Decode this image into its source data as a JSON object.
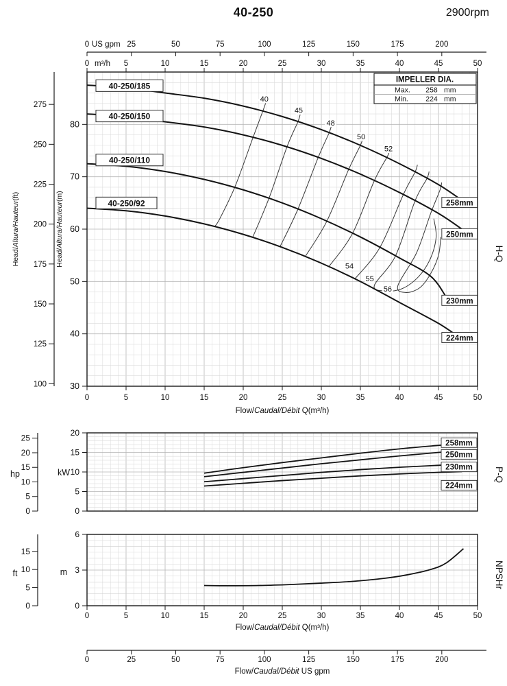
{
  "header": {
    "title": "40-250",
    "rpm": "2900rpm"
  },
  "side_labels": {
    "hq": "H-Q",
    "pq": "P-Q",
    "npshr": "NPSHr"
  },
  "impeller_box": {
    "title": "IMPELLER DIA.",
    "rows": [
      {
        "label": "Max.",
        "value": "258",
        "unit": "mm"
      },
      {
        "label": "Min.",
        "value": "224",
        "unit": "mm"
      }
    ]
  },
  "bottom_axis": {
    "ticks": [
      0,
      25,
      50,
      75,
      100,
      125,
      150,
      175,
      200
    ],
    "title": {
      "pre": "Flow/",
      "italic": "Caudal/Débit",
      "post": "  US gpm"
    }
  },
  "chart_data": [
    {
      "id": "hq",
      "type": "line",
      "xlim": [
        0,
        50
      ],
      "ylim": [
        30,
        90
      ],
      "x_ticks_m3h": [
        0,
        5,
        10,
        15,
        20,
        25,
        30,
        35,
        40,
        45,
        50
      ],
      "x_ticks_gpm": [
        0,
        25,
        50,
        75,
        100,
        125,
        150,
        175,
        200
      ],
      "y_ticks_m": [
        30,
        40,
        50,
        60,
        70,
        80
      ],
      "y_ticks_ft": [
        100,
        125,
        150,
        175,
        200,
        225,
        250,
        275
      ],
      "top_axis_gpm_label": "US gpm",
      "top_axis_m3h_label": "m³/h",
      "xlabel": {
        "pre": "Flow/",
        "italic": "Caudal/Débit",
        "post": " Q(m³/h)"
      },
      "ylabel_ft": {
        "pre": "Head/",
        "italic": "Altura/Hauteur",
        "post": "(ft)"
      },
      "ylabel_m": {
        "pre": "Head/",
        "italic": "Altura/Hauteur",
        "post": "(m)"
      },
      "series": [
        {
          "name": "258mm",
          "model": "40-250/185",
          "model_label_h": 87.4,
          "points": [
            [
              0,
              87.5
            ],
            [
              5,
              87
            ],
            [
              10,
              86
            ],
            [
              15,
              85
            ],
            [
              20,
              83.5
            ],
            [
              25,
              81.5
            ],
            [
              30,
              79
            ],
            [
              35,
              76
            ],
            [
              40,
              72.5
            ],
            [
              45,
              68.5
            ],
            [
              48,
              65.5
            ]
          ],
          "end_label": "258mm",
          "end_label_pos": [
            45.6,
            65.1
          ]
        },
        {
          "name": "250mm",
          "model": "40-250/150",
          "model_label_h": 81.6,
          "points": [
            [
              0,
              82
            ],
            [
              5,
              81.5
            ],
            [
              10,
              80.5
            ],
            [
              15,
              79.5
            ],
            [
              20,
              78
            ],
            [
              25,
              76
            ],
            [
              30,
              73.5
            ],
            [
              35,
              70.5
            ],
            [
              40,
              67
            ],
            [
              45,
              63
            ],
            [
              48,
              60
            ]
          ],
          "end_label": "250mm",
          "end_label_pos": [
            45.6,
            59.1
          ]
        },
        {
          "name": "230mm",
          "model": "40-250/110",
          "model_label_h": 73.2,
          "points": [
            [
              0,
              72.5
            ],
            [
              5,
              72
            ],
            [
              10,
              71
            ],
            [
              15,
              69.5
            ],
            [
              20,
              67.5
            ],
            [
              25,
              65
            ],
            [
              30,
              62
            ],
            [
              35,
              58.5
            ],
            [
              40,
              54.5
            ],
            [
              44,
              51
            ],
            [
              46,
              47
            ]
          ],
          "end_label": "230mm",
          "end_label_pos": [
            45.6,
            46.4
          ]
        },
        {
          "name": "224mm",
          "model": "40-250/92",
          "model_label_h": 65.0,
          "points": [
            [
              0,
              64
            ],
            [
              5,
              63.5
            ],
            [
              10,
              62.5
            ],
            [
              15,
              61
            ],
            [
              20,
              59
            ],
            [
              25,
              56.5
            ],
            [
              30,
              53.5
            ],
            [
              35,
              50
            ],
            [
              40,
              46
            ],
            [
              45,
              42
            ],
            [
              47.5,
              39.5
            ]
          ],
          "end_label": "224mm",
          "end_label_pos": [
            45.6,
            39.3
          ]
        }
      ],
      "efficiency_curves": [
        {
          "label": "40",
          "label_pos": [
            22.7,
            84.9
          ],
          "points": [
            [
              22.9,
              84.2
            ],
            [
              22.5,
              82.5
            ],
            [
              21.3,
              77.7
            ],
            [
              19,
              68.3
            ],
            [
              17,
              62
            ],
            [
              16.3,
              60.4
            ]
          ]
        },
        {
          "label": "45",
          "label_pos": [
            27.1,
            82.7
          ],
          "points": [
            [
              27.3,
              82
            ],
            [
              27,
              80.5
            ],
            [
              25.6,
              75.7
            ],
            [
              23.3,
              65.9
            ],
            [
              21.2,
              58.4
            ]
          ]
        },
        {
          "label": "48",
          "label_pos": [
            31.2,
            80.3
          ],
          "points": [
            [
              31.3,
              79.9
            ],
            [
              31,
              78.4
            ],
            [
              29.6,
              73.7
            ],
            [
              27,
              63.8
            ],
            [
              24.7,
              56.6
            ]
          ]
        },
        {
          "label": "50",
          "label_pos": [
            35.1,
            77.7
          ],
          "points": [
            [
              35.3,
              77.4
            ],
            [
              35,
              76
            ],
            [
              33.5,
              71.4
            ],
            [
              30.7,
              61.5
            ],
            [
              28,
              54.9
            ]
          ]
        },
        {
          "label": "52",
          "label_pos": [
            38.6,
            75.4
          ],
          "points": [
            [
              38.8,
              75.4
            ],
            [
              38.5,
              74
            ],
            [
              36.8,
              69.3
            ],
            [
              34,
              59.2
            ],
            [
              31,
              52.9
            ]
          ]
        },
        {
          "label": "54",
          "label_pos": [
            33.6,
            53.0
          ],
          "points": [
            [
              42.3,
              72.3
            ],
            [
              42,
              70.9
            ],
            [
              40.5,
              66.6
            ],
            [
              37.5,
              56.5
            ],
            [
              34.3,
              50.5
            ]
          ]
        },
        {
          "label": "55",
          "label_pos": [
            36.2,
            50.6
          ],
          "points": [
            [
              43.8,
              71
            ],
            [
              43.5,
              69.6
            ],
            [
              42,
              65.4
            ],
            [
              39.5,
              54.9
            ],
            [
              36.8,
              49.3
            ],
            [
              38,
              48.2
            ],
            [
              40.3,
              48.6
            ],
            [
              42.5,
              51
            ],
            [
              44,
              54.5
            ],
            [
              44.7,
              58.5
            ],
            [
              44.4,
              62
            ]
          ]
        },
        {
          "label": "56",
          "label_pos": [
            38.5,
            48.6
          ],
          "points": [
            [
              45.4,
              68.9
            ],
            [
              45.2,
              67.5
            ],
            [
              44,
              63
            ],
            [
              42.2,
              55.5
            ],
            [
              39.8,
              49.2
            ],
            [
              40.8,
              47.9
            ],
            [
              42.6,
              48.8
            ],
            [
              44,
              51.5
            ],
            [
              45,
              55
            ],
            [
              45.3,
              58.5
            ]
          ]
        }
      ]
    },
    {
      "id": "pq",
      "type": "line",
      "ylim_kw": [
        0,
        20
      ],
      "kw_ticks": [
        0,
        5,
        10,
        15,
        20
      ],
      "hp_ticks": [
        0,
        5,
        10,
        15,
        20,
        25
      ],
      "kw_label": "kW",
      "hp_label": "hp",
      "series": [
        {
          "name": "258mm",
          "label": "258mm",
          "label_kw": 17.5,
          "points": [
            [
              15,
              9.7
            ],
            [
              20,
              11.1
            ],
            [
              25,
              12.4
            ],
            [
              30,
              13.6
            ],
            [
              35,
              14.8
            ],
            [
              40,
              15.9
            ],
            [
              45,
              16.8
            ],
            [
              48,
              17.3
            ]
          ]
        },
        {
          "name": "250mm",
          "label": "250mm",
          "label_kw": 14.5,
          "points": [
            [
              15,
              8.8
            ],
            [
              20,
              9.9
            ],
            [
              25,
              11
            ],
            [
              30,
              12.1
            ],
            [
              35,
              13.1
            ],
            [
              40,
              14.1
            ],
            [
              45,
              15
            ],
            [
              48,
              15.5
            ]
          ]
        },
        {
          "name": "230mm",
          "label": "230mm",
          "label_kw": 11.3,
          "points": [
            [
              15,
              7.5
            ],
            [
              20,
              8.3
            ],
            [
              25,
              9.1
            ],
            [
              30,
              9.9
            ],
            [
              35,
              10.6
            ],
            [
              40,
              11.2
            ],
            [
              45,
              11.7
            ],
            [
              47,
              11.9
            ]
          ]
        },
        {
          "name": "224mm",
          "label": "224mm",
          "label_kw": 6.6,
          "points": [
            [
              15,
              6.4
            ],
            [
              20,
              7.1
            ],
            [
              25,
              7.8
            ],
            [
              30,
              8.4
            ],
            [
              35,
              9
            ],
            [
              40,
              9.5
            ],
            [
              45,
              9.9
            ],
            [
              48,
              10.1
            ]
          ]
        }
      ]
    },
    {
      "id": "npshr",
      "type": "line",
      "ylim_m": [
        0,
        6
      ],
      "m_ticks": [
        0,
        3,
        6
      ],
      "ft_ticks": [
        0,
        5,
        10,
        15
      ],
      "m_label": "m",
      "ft_label": "ft",
      "x_ticks_m3h": [
        0,
        5,
        10,
        15,
        20,
        25,
        30,
        35,
        40,
        45,
        50
      ],
      "xlabel": {
        "pre": "Flow/",
        "italic": "Caudal/Débit",
        "post": " Q(m³/h)"
      },
      "series": [
        {
          "name": "NPSHr",
          "points": [
            [
              15,
              1.7
            ],
            [
              18,
              1.68
            ],
            [
              22,
              1.7
            ],
            [
              26,
              1.78
            ],
            [
              30,
              1.9
            ],
            [
              34,
              2.05
            ],
            [
              38,
              2.3
            ],
            [
              41,
              2.6
            ],
            [
              44,
              3.05
            ],
            [
              46,
              3.6
            ],
            [
              48.2,
              4.8
            ]
          ]
        }
      ]
    }
  ]
}
